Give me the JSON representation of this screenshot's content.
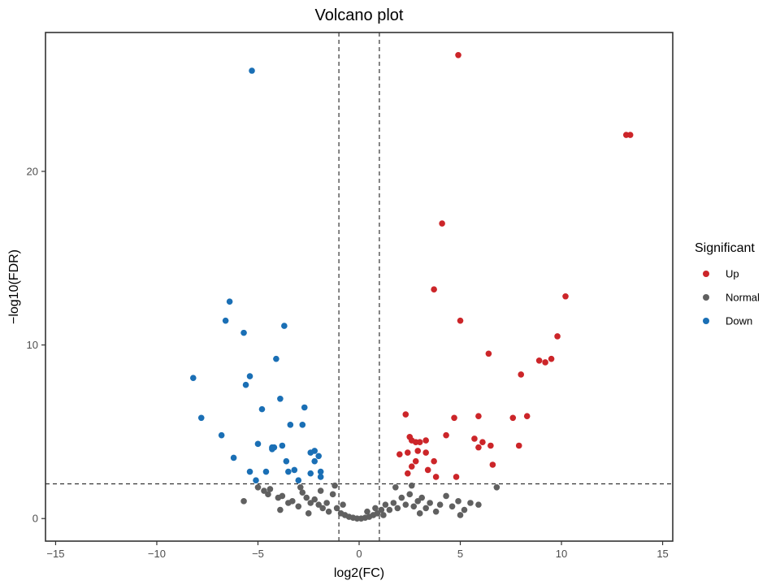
{
  "chart_data": {
    "type": "scatter",
    "title": "Volcano plot",
    "xlabel": "log2(FC)",
    "ylabel": "−log10(FDR)",
    "xlim": [
      -15.5,
      15.5
    ],
    "ylim": [
      -1.3,
      28
    ],
    "xticks": [
      -15,
      -10,
      -5,
      0,
      5,
      10,
      15
    ],
    "xtick_labels": [
      "−15",
      "−10",
      "−5",
      "0",
      "5",
      "10",
      "15"
    ],
    "yticks": [
      0,
      10,
      20
    ],
    "ytick_labels": [
      "0",
      "10",
      "20"
    ],
    "thresholds": {
      "x": [
        -1,
        1
      ],
      "y": 2
    },
    "grid": false,
    "legend": {
      "title": "Significant",
      "position": "right",
      "entries": [
        {
          "label": "Up",
          "color": "#cc2529"
        },
        {
          "label": "Normal",
          "color": "#606060"
        },
        {
          "label": "Down",
          "color": "#1a6fb5"
        }
      ]
    },
    "series": [
      {
        "name": "Up",
        "color": "#cc2529",
        "points": [
          [
            4.9,
            26.7
          ],
          [
            13.2,
            22.1
          ],
          [
            13.4,
            22.1
          ],
          [
            4.1,
            17.0
          ],
          [
            3.7,
            13.2
          ],
          [
            10.2,
            12.8
          ],
          [
            5.0,
            11.4
          ],
          [
            9.8,
            10.5
          ],
          [
            6.4,
            9.5
          ],
          [
            8.9,
            9.1
          ],
          [
            9.2,
            9.0
          ],
          [
            9.5,
            9.2
          ],
          [
            8.0,
            8.3
          ],
          [
            2.3,
            6.0
          ],
          [
            4.7,
            5.8
          ],
          [
            5.9,
            5.9
          ],
          [
            7.6,
            5.8
          ],
          [
            8.3,
            5.9
          ],
          [
            4.3,
            4.8
          ],
          [
            2.5,
            4.7
          ],
          [
            2.6,
            4.5
          ],
          [
            2.8,
            4.4
          ],
          [
            3.0,
            4.4
          ],
          [
            3.3,
            4.5
          ],
          [
            5.7,
            4.6
          ],
          [
            6.1,
            4.4
          ],
          [
            6.5,
            4.2
          ],
          [
            7.9,
            4.2
          ],
          [
            2.0,
            3.7
          ],
          [
            2.4,
            3.8
          ],
          [
            2.9,
            3.9
          ],
          [
            3.3,
            3.8
          ],
          [
            5.9,
            4.1
          ],
          [
            2.8,
            3.3
          ],
          [
            3.7,
            3.3
          ],
          [
            6.6,
            3.1
          ],
          [
            2.6,
            3.0
          ],
          [
            3.4,
            2.8
          ],
          [
            2.4,
            2.6
          ],
          [
            3.8,
            2.4
          ],
          [
            4.8,
            2.4
          ]
        ]
      },
      {
        "name": "Normal",
        "color": "#606060",
        "points": [
          [
            -5.7,
            1.0
          ],
          [
            -5.0,
            1.8
          ],
          [
            -4.7,
            1.6
          ],
          [
            -4.4,
            1.7
          ],
          [
            -4.0,
            1.2
          ],
          [
            -3.8,
            1.3
          ],
          [
            -3.5,
            0.9
          ],
          [
            -3.3,
            1.0
          ],
          [
            -3.0,
            0.7
          ],
          [
            -2.8,
            1.5
          ],
          [
            -2.6,
            1.2
          ],
          [
            -2.4,
            0.9
          ],
          [
            -2.2,
            1.1
          ],
          [
            -2.0,
            0.8
          ],
          [
            -1.8,
            0.6
          ],
          [
            -1.6,
            0.9
          ],
          [
            -1.5,
            0.4
          ],
          [
            -1.3,
            1.4
          ],
          [
            -1.1,
            0.6
          ],
          [
            -0.9,
            0.3
          ],
          [
            -0.7,
            0.2
          ],
          [
            -0.5,
            0.1
          ],
          [
            -0.3,
            0.05
          ],
          [
            -0.1,
            0.0
          ],
          [
            0.1,
            0.0
          ],
          [
            0.3,
            0.05
          ],
          [
            0.5,
            0.1
          ],
          [
            0.7,
            0.2
          ],
          [
            0.9,
            0.3
          ],
          [
            1.1,
            0.5
          ],
          [
            1.3,
            0.8
          ],
          [
            1.5,
            0.5
          ],
          [
            1.7,
            0.9
          ],
          [
            1.9,
            0.6
          ],
          [
            2.1,
            1.2
          ],
          [
            2.3,
            0.8
          ],
          [
            2.5,
            1.4
          ],
          [
            2.7,
            0.7
          ],
          [
            2.9,
            1.0
          ],
          [
            3.1,
            1.2
          ],
          [
            3.3,
            0.6
          ],
          [
            3.5,
            0.9
          ],
          [
            3.8,
            0.4
          ],
          [
            4.0,
            0.8
          ],
          [
            4.3,
            1.3
          ],
          [
            4.6,
            0.7
          ],
          [
            4.9,
            1.0
          ],
          [
            5.2,
            0.5
          ],
          [
            5.5,
            0.9
          ],
          [
            5.9,
            0.8
          ],
          [
            6.8,
            1.8
          ],
          [
            -4.5,
            1.4
          ],
          [
            -3.9,
            0.5
          ],
          [
            -2.5,
            0.3
          ],
          [
            -1.9,
            1.6
          ],
          [
            0.8,
            0.6
          ],
          [
            1.2,
            0.2
          ],
          [
            1.8,
            1.8
          ],
          [
            2.6,
            1.9
          ],
          [
            3.0,
            0.3
          ],
          [
            -0.8,
            0.8
          ],
          [
            -1.2,
            1.9
          ],
          [
            -2.9,
            1.8
          ],
          [
            0.4,
            0.4
          ],
          [
            5.0,
            0.2
          ]
        ]
      },
      {
        "name": "Down",
        "color": "#1a6fb5",
        "points": [
          [
            -5.3,
            25.8
          ],
          [
            -6.4,
            12.5
          ],
          [
            -6.6,
            11.4
          ],
          [
            -3.7,
            11.1
          ],
          [
            -5.7,
            10.7
          ],
          [
            -4.1,
            9.2
          ],
          [
            -8.2,
            8.1
          ],
          [
            -5.4,
            8.2
          ],
          [
            -5.6,
            7.7
          ],
          [
            -3.9,
            6.9
          ],
          [
            -4.8,
            6.3
          ],
          [
            -2.7,
            6.4
          ],
          [
            -7.8,
            5.8
          ],
          [
            -3.4,
            5.4
          ],
          [
            -2.8,
            5.4
          ],
          [
            -6.8,
            4.8
          ],
          [
            -5.0,
            4.3
          ],
          [
            -4.2,
            4.1
          ],
          [
            -3.8,
            4.2
          ],
          [
            -2.4,
            3.8
          ],
          [
            -2.2,
            3.9
          ],
          [
            -2.0,
            3.6
          ],
          [
            -6.2,
            3.5
          ],
          [
            -4.3,
            4.0
          ],
          [
            -3.6,
            3.3
          ],
          [
            -2.2,
            3.3
          ],
          [
            -3.5,
            2.7
          ],
          [
            -3.2,
            2.8
          ],
          [
            -2.4,
            2.6
          ],
          [
            -4.6,
            2.7
          ],
          [
            -5.4,
            2.7
          ],
          [
            -1.9,
            2.7
          ],
          [
            -5.1,
            2.2
          ],
          [
            -3.0,
            2.2
          ],
          [
            -1.9,
            2.4
          ],
          [
            -4.3,
            4.1
          ]
        ]
      }
    ]
  }
}
